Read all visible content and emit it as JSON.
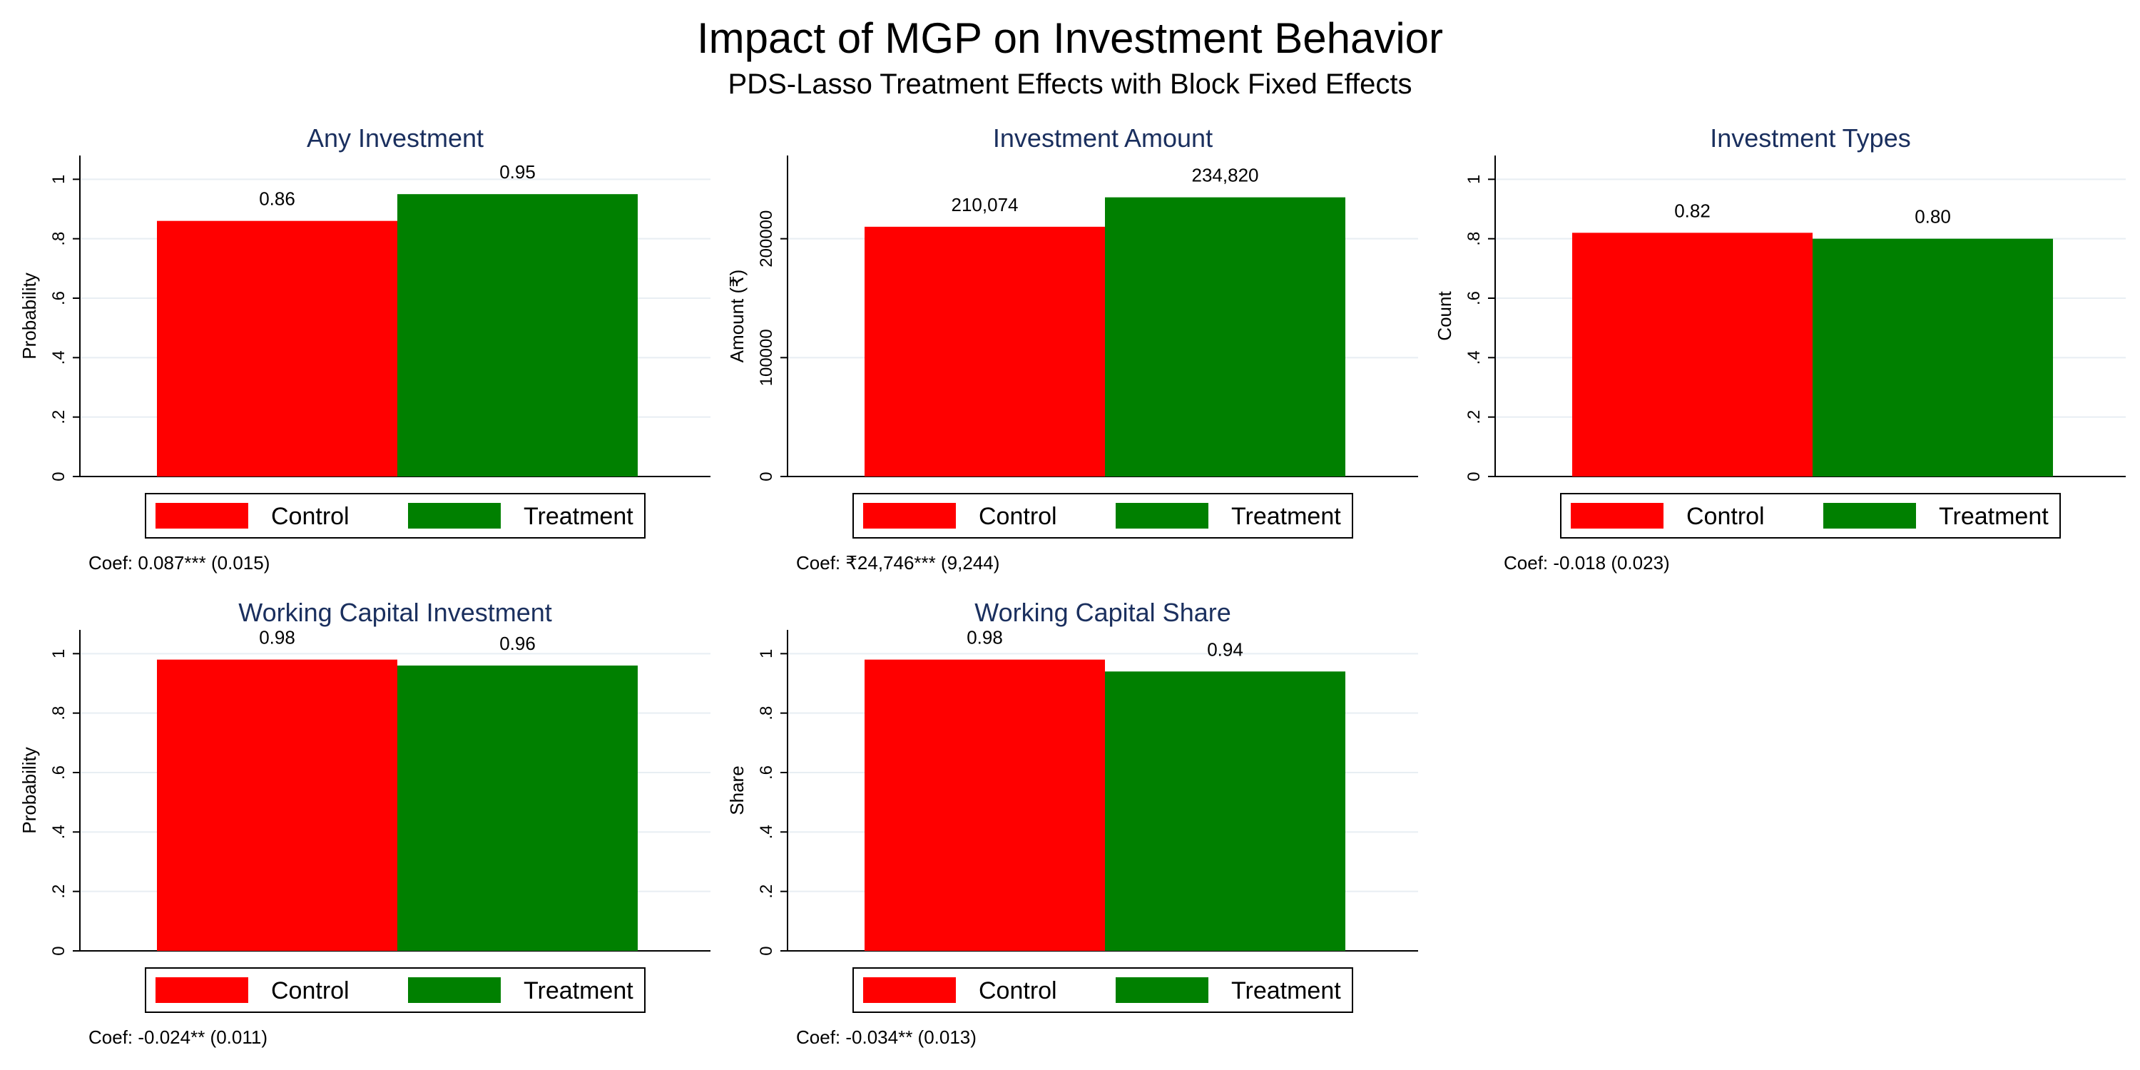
{
  "figure": {
    "title": "Impact of MGP on Investment Behavior",
    "subtitle": "PDS-Lasso Treatment Effects with Block Fixed Effects",
    "colors": {
      "control": "#ff0000",
      "treatment": "#008000",
      "title_text": "#1a2f5e",
      "grid": "#e8eef3"
    }
  },
  "chart_data": [
    {
      "type": "bar",
      "title": "Any Investment",
      "ylabel": "Probability",
      "categories": [
        "Control",
        "Treatment"
      ],
      "values": [
        0.86,
        0.95
      ],
      "data_labels": [
        "0.86",
        "0.95"
      ],
      "ylim": [
        0,
        1.08
      ],
      "yticks": [
        0,
        0.2,
        0.4,
        0.6,
        0.8,
        1
      ],
      "ytick_labels": [
        "0",
        ".2",
        ".4",
        ".6",
        ".8",
        "1"
      ],
      "legend": [
        "Control",
        "Treatment"
      ],
      "legend_position": "bottom",
      "grid": true,
      "note": "Coef: 0.087*** (0.015)"
    },
    {
      "type": "bar",
      "title": "Investment Amount",
      "ylabel": "Amount (₹)",
      "categories": [
        "Control",
        "Treatment"
      ],
      "values": [
        210074,
        234820
      ],
      "data_labels": [
        "210,074",
        "234,820"
      ],
      "ylim": [
        0,
        270000
      ],
      "yticks": [
        0,
        100000,
        200000
      ],
      "ytick_labels": [
        "0",
        "100000",
        "200000"
      ],
      "legend": [
        "Control",
        "Treatment"
      ],
      "legend_position": "bottom",
      "grid": true,
      "note": "Coef: ₹24,746*** (9,244)"
    },
    {
      "type": "bar",
      "title": "Investment Types",
      "ylabel": "Count",
      "categories": [
        "Control",
        "Treatment"
      ],
      "values": [
        0.82,
        0.8
      ],
      "data_labels": [
        "0.82",
        "0.80"
      ],
      "ylim": [
        0,
        1.08
      ],
      "yticks": [
        0,
        0.2,
        0.4,
        0.6,
        0.8,
        1
      ],
      "ytick_labels": [
        "0",
        ".2",
        ".4",
        ".6",
        ".8",
        "1"
      ],
      "legend": [
        "Control",
        "Treatment"
      ],
      "legend_position": "bottom",
      "grid": true,
      "note": "Coef: -0.018 (0.023)"
    },
    {
      "type": "bar",
      "title": "Working Capital Investment",
      "ylabel": "Probability",
      "categories": [
        "Control",
        "Treatment"
      ],
      "values": [
        0.98,
        0.96
      ],
      "data_labels": [
        "0.98",
        "0.96"
      ],
      "ylim": [
        0,
        1.08
      ],
      "yticks": [
        0,
        0.2,
        0.4,
        0.6,
        0.8,
        1
      ],
      "ytick_labels": [
        "0",
        ".2",
        ".4",
        ".6",
        ".8",
        "1"
      ],
      "legend": [
        "Control",
        "Treatment"
      ],
      "legend_position": "bottom",
      "grid": true,
      "note": "Coef: -0.024** (0.011)"
    },
    {
      "type": "bar",
      "title": "Working Capital Share",
      "ylabel": "Share",
      "categories": [
        "Control",
        "Treatment"
      ],
      "values": [
        0.98,
        0.94
      ],
      "data_labels": [
        "0.98",
        "0.94"
      ],
      "ylim": [
        0,
        1.08
      ],
      "yticks": [
        0,
        0.2,
        0.4,
        0.6,
        0.8,
        1
      ],
      "ytick_labels": [
        "0",
        ".2",
        ".4",
        ".6",
        ".8",
        "1"
      ],
      "legend": [
        "Control",
        "Treatment"
      ],
      "legend_position": "bottom",
      "grid": true,
      "note": "Coef: -0.034** (0.013)"
    }
  ]
}
